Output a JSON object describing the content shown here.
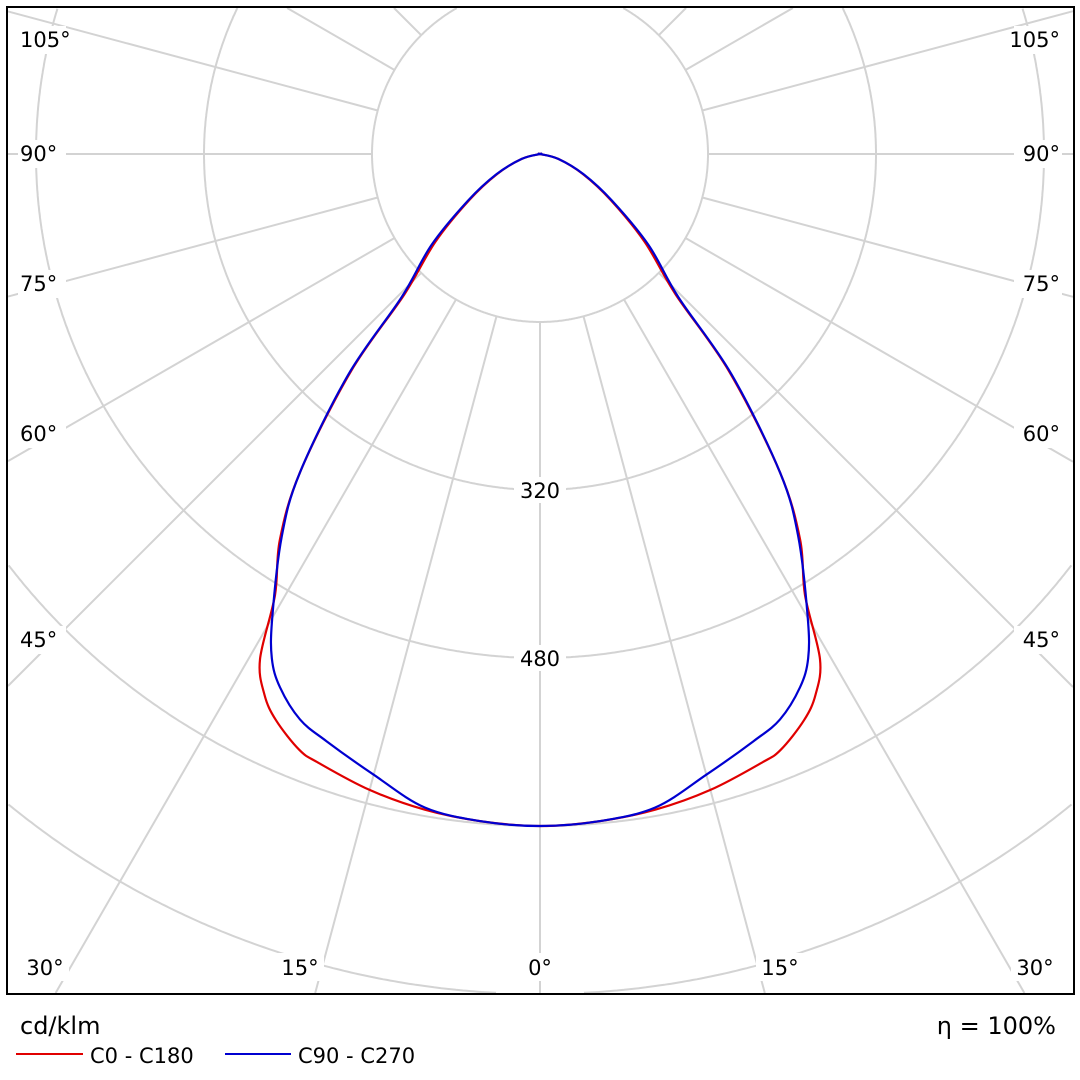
{
  "chart_data": {
    "type": "polar",
    "unit_label": "cd/klm",
    "efficiency_label": "η = 100%",
    "radial_ticks": [
      160,
      320,
      480,
      640,
      800,
      960
    ],
    "radial_tick_labels": [
      "320",
      "480"
    ],
    "angle_grid_step": 15,
    "angle_labels_side": [
      "105°",
      "90°",
      "75°",
      "60°",
      "45°"
    ],
    "angle_labels_bottom": [
      "30°",
      "15°",
      "0°",
      "15°",
      "30°"
    ],
    "series": [
      {
        "name": "C0 - C180",
        "color": "#e00000",
        "angles": [
          0,
          5,
          10,
          15,
          20,
          22,
          25,
          27,
          29,
          31,
          34,
          37,
          41,
          44,
          50,
          57,
          65,
          75,
          90
        ],
        "values": [
          640,
          638,
          634,
          627,
          617,
          612,
          595,
          578,
          550,
          490,
          443,
          380,
          275,
          186,
          130,
          80,
          45,
          18,
          0
        ]
      },
      {
        "name": "C90 - C270",
        "color": "#0000d0",
        "angles": [
          0,
          5,
          10,
          15,
          20,
          23,
          26,
          28,
          30,
          34,
          37,
          41,
          44,
          50,
          57,
          65,
          75,
          90
        ],
        "values": [
          640,
          638,
          632,
          612,
          595,
          585,
          565,
          544,
          510,
          440,
          380,
          278,
          190,
          135,
          82,
          46,
          18,
          0
        ]
      }
    ]
  }
}
